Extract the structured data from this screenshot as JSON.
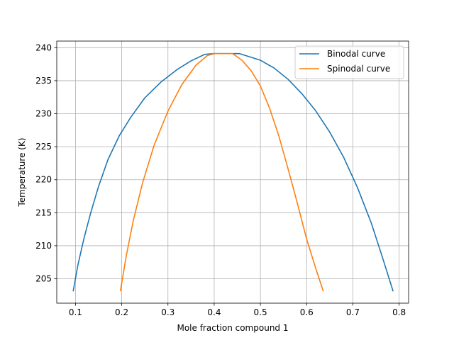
{
  "chart_data": {
    "type": "line",
    "title": "",
    "xlabel": "Mole fraction compound 1",
    "ylabel": "Temperature (K)",
    "xlim": [
      0.0595,
      0.8205
    ],
    "ylim": [
      201.3,
      241.0
    ],
    "x_ticks": [
      0.1,
      0.2,
      0.3,
      0.4,
      0.5,
      0.6,
      0.7,
      0.8
    ],
    "x_tick_labels": [
      "0.1",
      "0.2",
      "0.3",
      "0.4",
      "0.5",
      "0.6",
      "0.7",
      "0.8"
    ],
    "y_ticks": [
      205,
      210,
      215,
      220,
      225,
      230,
      235,
      240
    ],
    "y_tick_labels": [
      "205",
      "210",
      "215",
      "220",
      "225",
      "230",
      "235",
      "240"
    ],
    "grid": true,
    "legend_position": "top-right",
    "series": [
      {
        "name": "Binodal curve",
        "color": "#1f77b4",
        "points": [
          [
            0.095,
            203.1
          ],
          [
            0.105,
            207.0
          ],
          [
            0.118,
            211.0
          ],
          [
            0.133,
            215.0
          ],
          [
            0.15,
            219.0
          ],
          [
            0.17,
            223.0
          ],
          [
            0.195,
            226.7
          ],
          [
            0.22,
            229.5
          ],
          [
            0.25,
            232.4
          ],
          [
            0.285,
            234.8
          ],
          [
            0.32,
            236.7
          ],
          [
            0.35,
            238.0
          ],
          [
            0.38,
            239.0
          ],
          [
            0.4,
            239.1
          ],
          [
            0.43,
            239.1
          ],
          [
            0.455,
            239.1
          ],
          [
            0.5,
            238.1
          ],
          [
            0.53,
            236.9
          ],
          [
            0.56,
            235.2
          ],
          [
            0.59,
            233.0
          ],
          [
            0.62,
            230.4
          ],
          [
            0.65,
            227.2
          ],
          [
            0.68,
            223.4
          ],
          [
            0.71,
            218.8
          ],
          [
            0.74,
            213.4
          ],
          [
            0.765,
            208.0
          ],
          [
            0.787,
            203.1
          ]
        ]
      },
      {
        "name": "Spinodal curve",
        "color": "#ff7f0e",
        "points": [
          [
            0.197,
            203.1
          ],
          [
            0.21,
            208.5
          ],
          [
            0.225,
            213.8
          ],
          [
            0.245,
            219.5
          ],
          [
            0.27,
            225.2
          ],
          [
            0.3,
            230.4
          ],
          [
            0.33,
            234.4
          ],
          [
            0.36,
            237.3
          ],
          [
            0.385,
            238.8
          ],
          [
            0.4,
            239.1
          ],
          [
            0.43,
            239.1
          ],
          [
            0.44,
            239.1
          ],
          [
            0.46,
            238.1
          ],
          [
            0.48,
            236.5
          ],
          [
            0.5,
            234.2
          ],
          [
            0.52,
            230.8
          ],
          [
            0.54,
            226.6
          ],
          [
            0.56,
            221.6
          ],
          [
            0.58,
            216.4
          ],
          [
            0.6,
            211.0
          ],
          [
            0.62,
            206.5
          ],
          [
            0.636,
            203.1
          ]
        ]
      }
    ]
  }
}
